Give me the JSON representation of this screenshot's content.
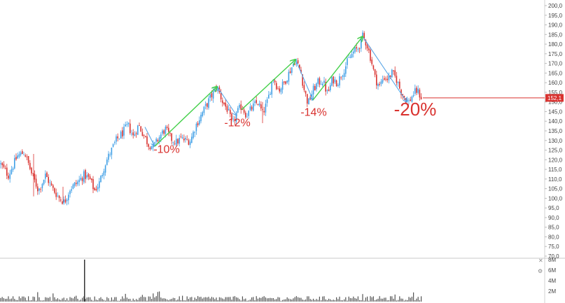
{
  "chart_data": {
    "type": "candlestick",
    "price_axis": {
      "ylim": [
        70,
        200
      ],
      "tick_labels": [
        "200,0",
        "195,0",
        "190,0",
        "185,0",
        "180,0",
        "175,0",
        "170,0",
        "165,0",
        "160,0",
        "155,0",
        "150,0",
        "145,0",
        "140,0",
        "135,0",
        "130,0",
        "125,0",
        "120,0",
        "115,0",
        "110,0",
        "105,0",
        "100,0",
        "95,0",
        "90,0",
        "85,0",
        "80,0",
        "75,0",
        "70,0"
      ],
      "tick_values": [
        200,
        195,
        190,
        185,
        180,
        175,
        170,
        165,
        160,
        155,
        150,
        145,
        140,
        135,
        130,
        125,
        120,
        115,
        110,
        105,
        100,
        95,
        90,
        85,
        80,
        75,
        70
      ],
      "current_price_label": "152,1",
      "current_price": 152.1
    },
    "volume_axis": {
      "ylim": [
        0,
        8
      ],
      "tick_labels": [
        "8M",
        "6M",
        "4M",
        "2M"
      ],
      "tick_values": [
        8,
        6,
        4,
        2
      ],
      "spike_value": 8
    },
    "price_path": [
      [
        0,
        118
      ],
      [
        12,
        112
      ],
      [
        25,
        122
      ],
      [
        35,
        124
      ],
      [
        45,
        113
      ],
      [
        55,
        104
      ],
      [
        65,
        112
      ],
      [
        75,
        105
      ],
      [
        85,
        100
      ],
      [
        92,
        98
      ],
      [
        100,
        105
      ],
      [
        110,
        108
      ],
      [
        120,
        112
      ],
      [
        128,
        110
      ],
      [
        135,
        104
      ],
      [
        142,
        108
      ],
      [
        150,
        118
      ],
      [
        158,
        124
      ],
      [
        166,
        130
      ],
      [
        175,
        134
      ],
      [
        183,
        138
      ],
      [
        190,
        132
      ],
      [
        198,
        138
      ],
      [
        205,
        133
      ],
      [
        212,
        128
      ],
      [
        220,
        127
      ],
      [
        228,
        132
      ],
      [
        236,
        136
      ],
      [
        244,
        131
      ],
      [
        252,
        129
      ],
      [
        258,
        131
      ],
      [
        265,
        130
      ],
      [
        272,
        130
      ],
      [
        280,
        138
      ],
      [
        290,
        145
      ],
      [
        300,
        152
      ],
      [
        310,
        158
      ],
      [
        318,
        150
      ],
      [
        325,
        146
      ],
      [
        332,
        138
      ],
      [
        338,
        144
      ],
      [
        345,
        148
      ],
      [
        352,
        143
      ],
      [
        360,
        147
      ],
      [
        368,
        150
      ],
      [
        375,
        144
      ],
      [
        382,
        150
      ],
      [
        390,
        163
      ],
      [
        398,
        156
      ],
      [
        406,
        160
      ],
      [
        414,
        166
      ],
      [
        422,
        172
      ],
      [
        430,
        165
      ],
      [
        434,
        157
      ],
      [
        440,
        149
      ],
      [
        447,
        156
      ],
      [
        454,
        160
      ],
      [
        461,
        161
      ],
      [
        468,
        154
      ],
      [
        475,
        162
      ],
      [
        482,
        160
      ],
      [
        490,
        166
      ],
      [
        498,
        172
      ],
      [
        505,
        176
      ],
      [
        512,
        178
      ],
      [
        518,
        184
      ],
      [
        524,
        180
      ],
      [
        530,
        172
      ],
      [
        536,
        162
      ],
      [
        542,
        158
      ],
      [
        548,
        163
      ],
      [
        554,
        162
      ],
      [
        560,
        165
      ],
      [
        566,
        162
      ],
      [
        572,
        156
      ],
      [
        578,
        152
      ],
      [
        584,
        150
      ],
      [
        590,
        154
      ],
      [
        596,
        156
      ],
      [
        602,
        152
      ]
    ],
    "trend_arrows_up": [
      [
        [
          221,
          127
        ],
        [
          310,
          158
        ]
      ],
      [
        [
          345,
          146
        ],
        [
          422,
          172
        ]
      ],
      [
        [
          447,
          151
        ],
        [
          518,
          184
        ]
      ]
    ],
    "trend_arrows_down": [
      [
        [
          207,
          137
        ],
        [
          221,
          127
        ]
      ],
      [
        [
          310,
          158
        ],
        [
          338,
          143
        ]
      ],
      [
        [
          422,
          172
        ],
        [
          447,
          151
        ]
      ],
      [
        [
          518,
          184
        ],
        [
          581,
          150
        ]
      ]
    ],
    "drawdowns": [
      {
        "label": "-10%",
        "x": 238,
        "y": 123.5
      },
      {
        "label": "-12%",
        "x": 339,
        "y": 137.3
      },
      {
        "label": "-14%",
        "x": 448,
        "y": 142.8
      },
      {
        "label": "-20%",
        "x": 593,
        "y": 143
      }
    ],
    "colors": {
      "up_candle": "#3f9fe6",
      "down_candle": "#d9322f",
      "trend_up_arrow": "#44d04a",
      "trend_down_arrow": "#5aa6e6",
      "drawdown_text": "#d9322f",
      "current_price_line": "#d9322f"
    },
    "grid": false,
    "xlabel": "",
    "ylabel": ""
  }
}
